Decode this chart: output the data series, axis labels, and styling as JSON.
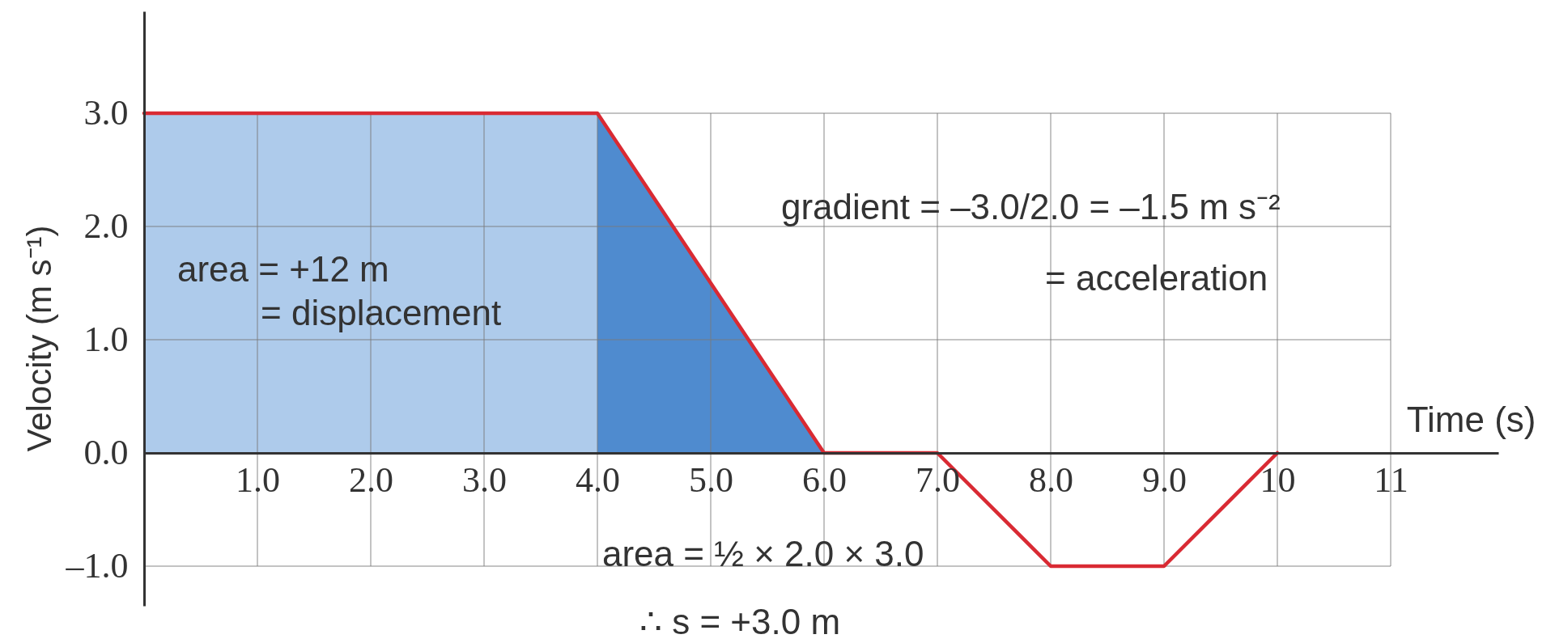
{
  "chart_data": {
    "type": "line",
    "series": [
      {
        "type": "area",
        "x": [
          0,
          4
        ],
        "values": [
          3,
          3
        ],
        "color": "#aecbeb"
      },
      {
        "type": "area",
        "x": [
          4,
          6
        ],
        "values": [
          3,
          0
        ],
        "color": "#4f8bcf"
      },
      {
        "x": [
          0,
          4,
          6,
          7,
          8,
          9,
          10
        ],
        "values": [
          3,
          3,
          0,
          0,
          -1,
          -1,
          0
        ],
        "color": "#d92a33"
      }
    ],
    "xlabel": "Time (s)",
    "ylabel": "Velocity (m s⁻¹)",
    "xlim": [
      0,
      11.95
    ],
    "ylim": [
      -1.35,
      3.9
    ],
    "xticks": [
      {
        "value": 1,
        "label": "1.0"
      },
      {
        "value": 2,
        "label": "2.0"
      },
      {
        "value": 3,
        "label": "3.0"
      },
      {
        "value": 4,
        "label": "4.0"
      },
      {
        "value": 5,
        "label": "5.0"
      },
      {
        "value": 6,
        "label": "6.0"
      },
      {
        "value": 7,
        "label": "7.0"
      },
      {
        "value": 8,
        "label": "8.0"
      },
      {
        "value": 9,
        "label": "9.0"
      },
      10,
      11
    ],
    "yticks": [
      {
        "value": -1,
        "label": "–1.0"
      },
      {
        "value": 0,
        "label": "0.0"
      },
      {
        "value": 1,
        "label": "1.0"
      },
      {
        "value": 2,
        "label": "2.0"
      },
      {
        "value": 3,
        "label": "3.0"
      }
    ],
    "grid": true,
    "annotations": [
      "area = +12 m",
      "= displacement",
      "gradient = –3.0/2.0 = –1.5 m s⁻²",
      "= acceleration",
      "area = ½ × 2.0 × 3.0",
      "∴ s = +3.0 m"
    ]
  }
}
